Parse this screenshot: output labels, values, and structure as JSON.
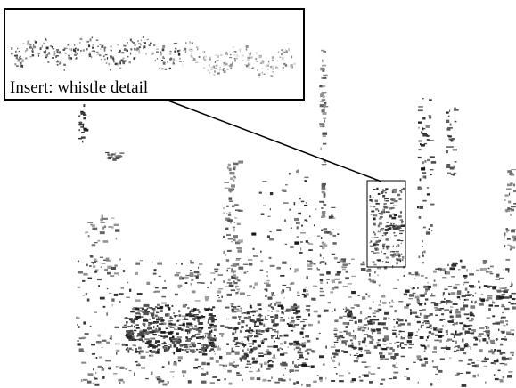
{
  "insert": {
    "label": "Insert: whistle detail"
  }
}
